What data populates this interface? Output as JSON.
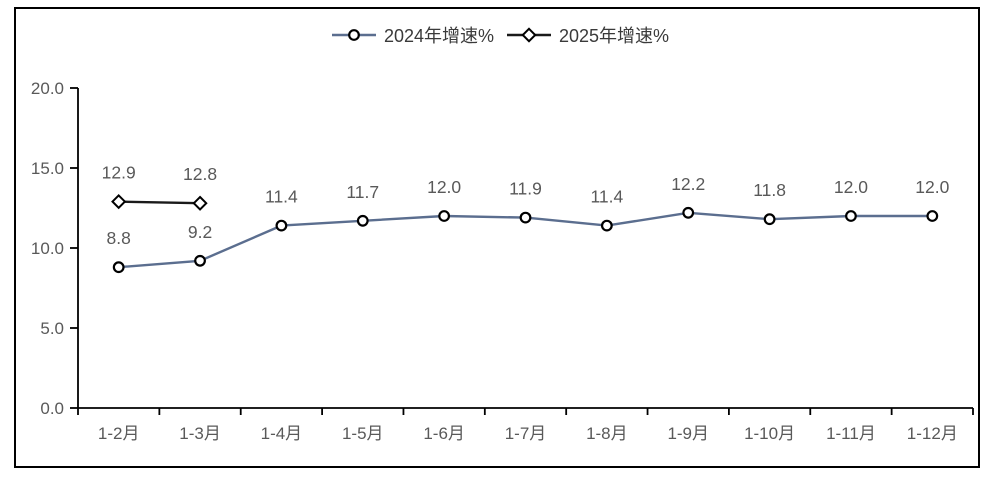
{
  "chart_data": {
    "type": "line",
    "categories": [
      "1-2月",
      "1-3月",
      "1-4月",
      "1-5月",
      "1-6月",
      "1-7月",
      "1-8月",
      "1-9月",
      "1-10月",
      "1-11月",
      "1-12月"
    ],
    "series": [
      {
        "name": "2024年增速%",
        "marker": "circle",
        "color": "#5b6e8f",
        "values": [
          8.8,
          9.2,
          11.4,
          11.7,
          12.0,
          11.9,
          11.4,
          12.2,
          11.8,
          12.0,
          12.0
        ]
      },
      {
        "name": "2025年增速%",
        "marker": "diamond",
        "color": "#1a1a1a",
        "values": [
          12.9,
          12.8
        ]
      }
    ],
    "ylim": [
      0,
      20
    ],
    "ytick_step": 5,
    "ytick_labels": [
      "0.0",
      "5.0",
      "10.0",
      "15.0",
      "20.0"
    ],
    "data_labels_shown": true,
    "legend_position": "top",
    "grid": "off",
    "colors": {
      "axis": "#000000",
      "tick_label": "#595959",
      "data_label": "#595959",
      "legend_text": "#3a3a3a",
      "marker_outline": "#000000",
      "marker_fill": "#ffffff",
      "frame_border": "#000000"
    }
  }
}
